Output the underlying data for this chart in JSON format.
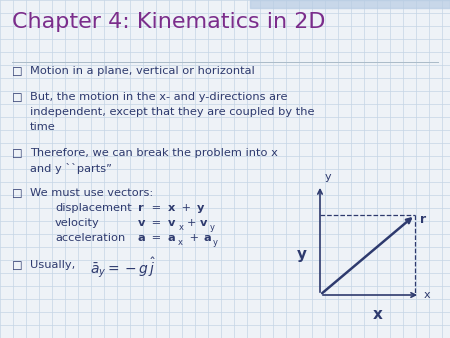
{
  "title": "Chapter 4: Kinematics in 2D",
  "title_color": "#7B2D8B",
  "title_fontsize": 16,
  "bg_color": "#EEF2F7",
  "text_color": "#2E3A6E",
  "grid_color": "#C5D5E5",
  "diagram_color": "#2E3A6E",
  "checkbox": "☐",
  "bullet1": "Motion in a plane, vertical or horizontal",
  "bullet2_line1": "But, the motion in the x- and y-directions are",
  "bullet2_line2": "independent, except that they are coupled by the",
  "bullet2_line3": "time",
  "bullet3_line1": "Therefore, we can break the problem into x",
  "bullet3_line2": "and y ``parts”",
  "bullet4_header": "We must use vectors:",
  "disp_label": "displacement",
  "vel_label": "velocity",
  "acc_label": "acceleration",
  "usually_label": "Usually,",
  "diagram_y_axis_label": "y",
  "diagram_x_axis_label": "x",
  "diagram_r_label": "r",
  "diagram_Y_label": "y",
  "diagram_X_label": "x"
}
